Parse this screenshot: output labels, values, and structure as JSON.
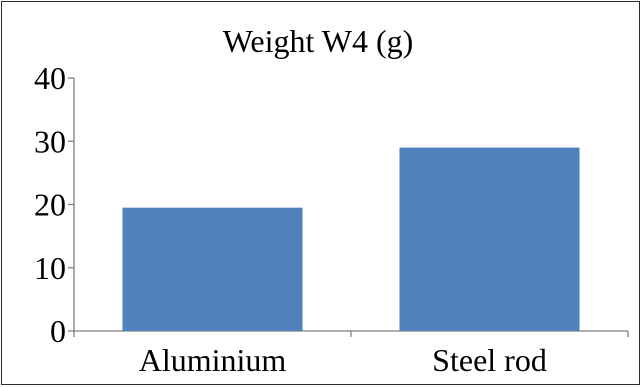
{
  "chart_data": {
    "type": "bar",
    "title": "Weight W4 (g)",
    "categories": [
      "Aluminium",
      "Steel rod"
    ],
    "values": [
      19.5,
      29
    ],
    "ylim": [
      0,
      40
    ],
    "yticks": [
      "0",
      "10",
      "20",
      "30",
      "40"
    ],
    "xlabel": "",
    "ylabel": "",
    "grid": false,
    "legend": "none",
    "bar_color": "#4f81bd"
  }
}
